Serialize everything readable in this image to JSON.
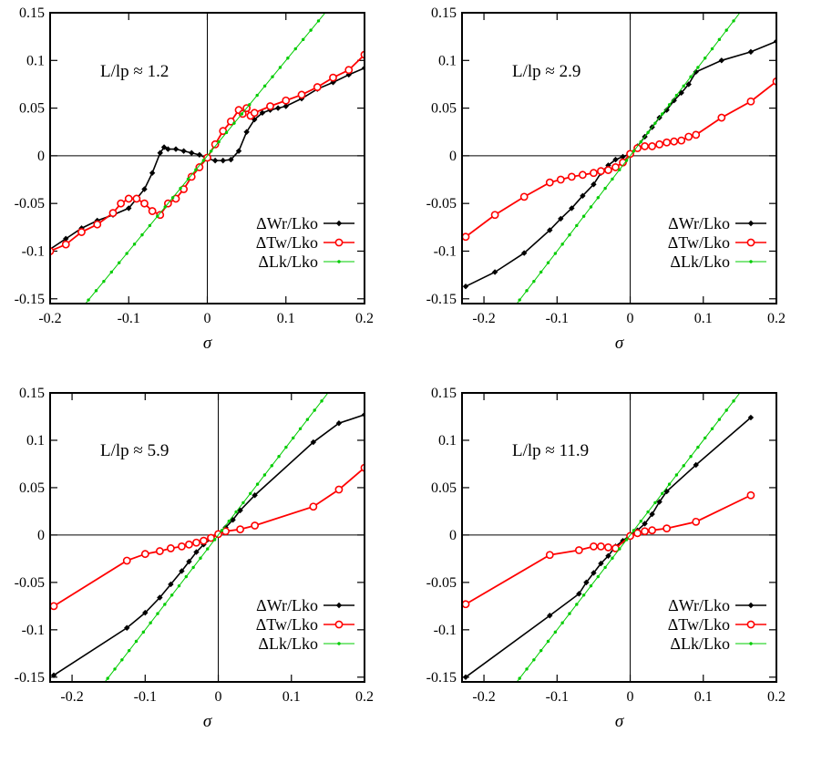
{
  "colors": {
    "wr": "#000000",
    "tw": "#ff0000",
    "lk": "#00cc00"
  },
  "chart_data": [
    {
      "type": "line",
      "annotation": "L/lp ≈ 1.2",
      "xlabel": "σ",
      "xlim": [
        -0.2,
        0.2
      ],
      "ylim": [
        -0.155,
        0.15
      ],
      "xticks": [
        -0.2,
        -0.1,
        0,
        0.1,
        0.2
      ],
      "xtick_labels": [
        "-0.2",
        "-0.1",
        "0",
        "0.1",
        "0.2"
      ],
      "yticks": [
        -0.15,
        -0.1,
        -0.05,
        0,
        0.05,
        0.1,
        0.15
      ],
      "ytick_labels": [
        "-0.15",
        "-0.1",
        "-0.05",
        "0",
        "0.05",
        "0.1",
        "0.15"
      ],
      "series": [
        {
          "name": "ΔWr/Lko",
          "key": "wr",
          "x": [
            -0.2,
            -0.18,
            -0.16,
            -0.14,
            -0.12,
            -0.1,
            -0.09,
            -0.08,
            -0.07,
            -0.06,
            -0.055,
            -0.05,
            -0.04,
            -0.03,
            -0.02,
            -0.01,
            0,
            0.01,
            0.02,
            0.03,
            0.04,
            0.05,
            0.06,
            0.07,
            0.08,
            0.09,
            0.1,
            0.12,
            0.14,
            0.16,
            0.18,
            0.2
          ],
          "y": [
            -0.098,
            -0.087,
            -0.076,
            -0.068,
            -0.062,
            -0.055,
            -0.045,
            -0.035,
            -0.018,
            0.003,
            0.009,
            0.007,
            0.007,
            0.005,
            0.003,
            0.001,
            -0.003,
            -0.005,
            -0.005,
            -0.004,
            0.005,
            0.025,
            0.038,
            0.045,
            0.048,
            0.05,
            0.052,
            0.06,
            0.07,
            0.077,
            0.085,
            0.092
          ]
        },
        {
          "name": "ΔTw/Lko",
          "key": "tw",
          "x": [
            -0.2,
            -0.18,
            -0.16,
            -0.14,
            -0.12,
            -0.11,
            -0.1,
            -0.09,
            -0.08,
            -0.07,
            -0.06,
            -0.05,
            -0.04,
            -0.03,
            -0.02,
            -0.01,
            0,
            0.01,
            0.02,
            0.03,
            0.04,
            0.045,
            0.05,
            0.055,
            0.06,
            0.08,
            0.1,
            0.12,
            0.14,
            0.16,
            0.18,
            0.2
          ],
          "y": [
            -0.1,
            -0.093,
            -0.08,
            -0.072,
            -0.06,
            -0.05,
            -0.045,
            -0.045,
            -0.05,
            -0.058,
            -0.062,
            -0.05,
            -0.045,
            -0.035,
            -0.022,
            -0.012,
            -0.002,
            0.012,
            0.026,
            0.036,
            0.048,
            0.044,
            0.05,
            0.042,
            0.045,
            0.052,
            0.058,
            0.064,
            0.072,
            0.082,
            0.09,
            0.106
          ]
        },
        {
          "name": "ΔLk/Lko",
          "key": "lk",
          "x": [
            -0.2,
            0.2
          ],
          "y": [
            -0.2,
            0.2
          ]
        }
      ]
    },
    {
      "type": "line",
      "annotation": "L/lp ≈ 2.9",
      "xlabel": "σ",
      "xlim": [
        -0.23,
        0.2
      ],
      "ylim": [
        -0.155,
        0.15
      ],
      "xticks": [
        -0.2,
        -0.1,
        0,
        0.1,
        0.2
      ],
      "xtick_labels": [
        "-0.2",
        "-0.1",
        "0",
        "0.1",
        "0.2"
      ],
      "yticks": [
        -0.15,
        -0.1,
        -0.05,
        0,
        0.05,
        0.1,
        0.15
      ],
      "ytick_labels": [
        "-0.15",
        "-0.1",
        "-0.05",
        "0",
        "0.05",
        "0.1",
        "0.15"
      ],
      "series": [
        {
          "name": "ΔWr/Lko",
          "key": "wr",
          "x": [
            -0.225,
            -0.185,
            -0.145,
            -0.11,
            -0.095,
            -0.08,
            -0.065,
            -0.05,
            -0.04,
            -0.03,
            -0.02,
            -0.01,
            0,
            0.01,
            0.02,
            0.03,
            0.04,
            0.05,
            0.06,
            0.07,
            0.08,
            0.09,
            0.125,
            0.165,
            0.2
          ],
          "y": [
            -0.137,
            -0.122,
            -0.102,
            -0.078,
            -0.066,
            -0.055,
            -0.042,
            -0.03,
            -0.018,
            -0.01,
            -0.004,
            -0.001,
            0.002,
            0.01,
            0.02,
            0.03,
            0.04,
            0.048,
            0.058,
            0.066,
            0.075,
            0.088,
            0.1,
            0.109,
            0.12
          ]
        },
        {
          "name": "ΔTw/Lko",
          "key": "tw",
          "x": [
            -0.225,
            -0.185,
            -0.145,
            -0.11,
            -0.095,
            -0.08,
            -0.065,
            -0.05,
            -0.04,
            -0.03,
            -0.02,
            -0.01,
            0,
            0.01,
            0.02,
            0.03,
            0.04,
            0.05,
            0.06,
            0.07,
            0.08,
            0.09,
            0.125,
            0.165,
            0.2
          ],
          "y": [
            -0.085,
            -0.062,
            -0.043,
            -0.028,
            -0.025,
            -0.022,
            -0.02,
            -0.018,
            -0.016,
            -0.015,
            -0.012,
            -0.007,
            0.002,
            0.008,
            0.01,
            0.01,
            0.012,
            0.014,
            0.015,
            0.016,
            0.02,
            0.022,
            0.04,
            0.057,
            0.078
          ]
        },
        {
          "name": "ΔLk/Lko",
          "key": "lk",
          "x": [
            -0.2,
            0.2
          ],
          "y": [
            -0.2,
            0.2
          ]
        }
      ]
    },
    {
      "type": "line",
      "annotation": "L/lp ≈ 5.9",
      "xlabel": "σ",
      "xlim": [
        -0.23,
        0.2
      ],
      "ylim": [
        -0.155,
        0.15
      ],
      "xticks": [
        -0.2,
        -0.1,
        0,
        0.1,
        0.2
      ],
      "xtick_labels": [
        "-0.2",
        "-0.1",
        "0",
        "0.1",
        "0.2"
      ],
      "yticks": [
        -0.15,
        -0.1,
        -0.05,
        0,
        0.05,
        0.1,
        0.15
      ],
      "ytick_labels": [
        "-0.15",
        "-0.1",
        "-0.05",
        "0",
        "0.05",
        "0.1",
        "0.15"
      ],
      "series": [
        {
          "name": "ΔWr/Lko",
          "key": "wr",
          "x": [
            -0.225,
            -0.125,
            -0.1,
            -0.08,
            -0.065,
            -0.05,
            -0.04,
            -0.03,
            -0.02,
            -0.01,
            0,
            0.01,
            0.02,
            0.03,
            0.05,
            0.13,
            0.165,
            0.2
          ],
          "y": [
            -0.148,
            -0.098,
            -0.082,
            -0.066,
            -0.052,
            -0.038,
            -0.028,
            -0.018,
            -0.01,
            -0.004,
            0.002,
            0.008,
            0.016,
            0.026,
            0.042,
            0.098,
            0.118,
            0.127
          ]
        },
        {
          "name": "ΔTw/Lko",
          "key": "tw",
          "x": [
            -0.225,
            -0.125,
            -0.1,
            -0.08,
            -0.065,
            -0.05,
            -0.04,
            -0.03,
            -0.02,
            -0.01,
            0,
            0.01,
            0.03,
            0.05,
            0.13,
            0.165,
            0.2
          ],
          "y": [
            -0.075,
            -0.027,
            -0.02,
            -0.017,
            -0.014,
            -0.012,
            -0.01,
            -0.008,
            -0.006,
            -0.003,
            0.001,
            0.004,
            0.006,
            0.01,
            0.03,
            0.048,
            0.071
          ]
        },
        {
          "name": "ΔLk/Lko",
          "key": "lk",
          "x": [
            -0.2,
            0.2
          ],
          "y": [
            -0.2,
            0.2
          ]
        }
      ]
    },
    {
      "type": "line",
      "annotation": "L/lp ≈ 11.9",
      "xlabel": "σ",
      "xlim": [
        -0.23,
        0.2
      ],
      "ylim": [
        -0.155,
        0.15
      ],
      "xticks": [
        -0.2,
        -0.1,
        0,
        0.1,
        0.2
      ],
      "xtick_labels": [
        "-0.2",
        "-0.1",
        "0",
        "0.1",
        "0.2"
      ],
      "yticks": [
        -0.15,
        -0.1,
        -0.05,
        0,
        0.05,
        0.1,
        0.15
      ],
      "ytick_labels": [
        "-0.15",
        "-0.1",
        "-0.05",
        "0",
        "0.05",
        "0.1",
        "0.15"
      ],
      "series": [
        {
          "name": "ΔWr/Lko",
          "key": "wr",
          "x": [
            -0.225,
            -0.11,
            -0.07,
            -0.06,
            -0.05,
            -0.04,
            -0.03,
            -0.02,
            -0.01,
            0,
            0.01,
            0.02,
            0.03,
            0.04,
            0.05,
            0.09,
            0.165
          ],
          "y": [
            -0.15,
            -0.085,
            -0.062,
            -0.05,
            -0.04,
            -0.03,
            -0.022,
            -0.012,
            -0.006,
            0,
            0.005,
            0.012,
            0.022,
            0.035,
            0.046,
            0.074,
            0.124
          ]
        },
        {
          "name": "ΔTw/Lko",
          "key": "tw",
          "x": [
            -0.225,
            -0.11,
            -0.07,
            -0.05,
            -0.04,
            -0.03,
            -0.02,
            0,
            0.01,
            0.02,
            0.03,
            0.05,
            0.09,
            0.165
          ],
          "y": [
            -0.073,
            -0.021,
            -0.016,
            -0.012,
            -0.012,
            -0.013,
            -0.014,
            -0.001,
            0.002,
            0.004,
            0.005,
            0.007,
            0.014,
            0.042
          ]
        },
        {
          "name": "ΔLk/Lko",
          "key": "lk",
          "x": [
            -0.2,
            0.2
          ],
          "y": [
            -0.2,
            0.2
          ]
        }
      ]
    }
  ]
}
